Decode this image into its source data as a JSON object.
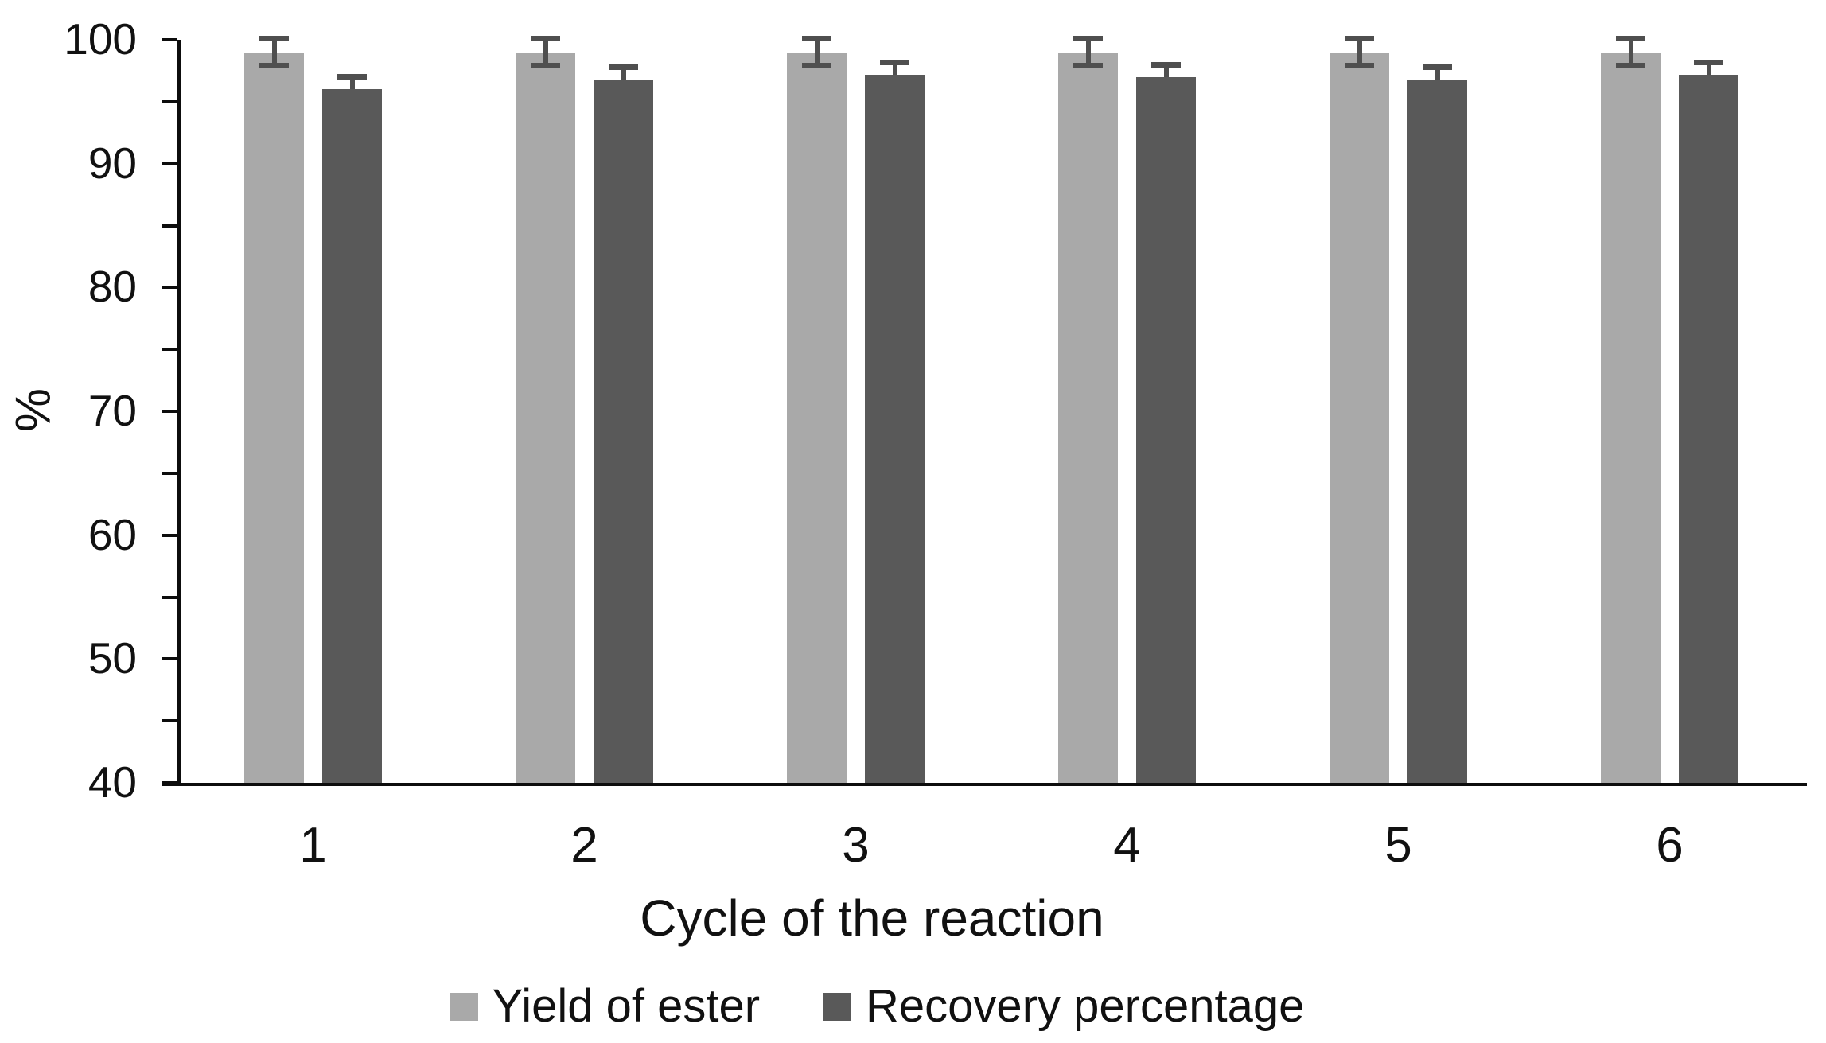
{
  "chart_data": {
    "type": "bar",
    "title": "",
    "xlabel": "Cycle of the reaction",
    "ylabel": "%",
    "categories": [
      "1",
      "2",
      "3",
      "4",
      "5",
      "6"
    ],
    "series": [
      {
        "name": "Yield of ester",
        "color": "#a9a9a9",
        "values": [
          99,
          99,
          99,
          99,
          99,
          99
        ],
        "error_plus": [
          1.1,
          1.1,
          1.1,
          1.1,
          1.1,
          1.1
        ],
        "error_minus": [
          1.1,
          1.1,
          1.1,
          1.1,
          1.1,
          1.1
        ],
        "error_caps": "both"
      },
      {
        "name": "Recovery percentage",
        "color": "#595959",
        "values": [
          96,
          96.8,
          97.2,
          97,
          96.8,
          97.2
        ],
        "error_plus": [
          1.0,
          1.0,
          1.0,
          1.0,
          1.0,
          1.0
        ],
        "error_minus": [
          0,
          0,
          0,
          0,
          0,
          0
        ],
        "error_caps": "upper"
      }
    ],
    "ylim": [
      40,
      100
    ],
    "ytick_major_step": 10,
    "ytick_minor_step": 5,
    "ytick_labels": [
      "40",
      "50",
      "60",
      "70",
      "80",
      "90",
      "100"
    ],
    "grid": false,
    "legend_position": "bottom",
    "axis_color": "#0d0d0d",
    "error_bar_color": "#4f4f4f",
    "background_color": "#ffffff"
  }
}
